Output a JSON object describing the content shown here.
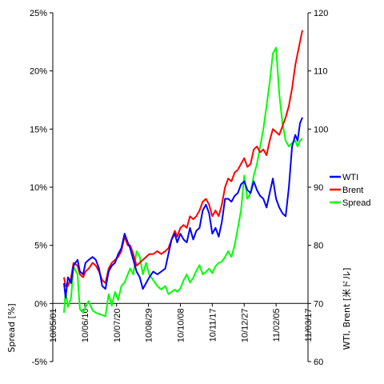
{
  "chart_data": {
    "type": "line",
    "title": "",
    "left_axis": {
      "label": "Spread [%]",
      "range": [
        -5,
        25
      ],
      "ticks": [
        "-5%",
        "0%",
        "5%",
        "10%",
        "15%",
        "20%",
        "25%"
      ],
      "tick_values": [
        -5,
        0,
        5,
        10,
        15,
        20,
        25
      ]
    },
    "right_axis": {
      "label": "WTI, Brent [米ドル]",
      "range": [
        60,
        120
      ],
      "ticks": [
        "60",
        "70",
        "80",
        "90",
        "100",
        "110",
        "120"
      ],
      "tick_values": [
        60,
        70,
        80,
        90,
        100,
        110,
        120
      ]
    },
    "x_axis": {
      "start": "2010-05-01",
      "end": "2011-03-17",
      "tick_labels": [
        "10/05/01",
        "10/06/10",
        "10/07/20",
        "10/08/29",
        "10/10/08",
        "10/11/17",
        "10/12/27",
        "11/02/05",
        "11/03/17"
      ],
      "tick_dates": [
        "2010-05-01",
        "2010-06-10",
        "2010-07-20",
        "2010-08-29",
        "2010-10-08",
        "2010-11-17",
        "2010-12-27",
        "2011-02-05",
        "2011-03-17"
      ]
    },
    "grid": false,
    "legend": {
      "position": "right",
      "items": [
        "WTI",
        "Brent",
        "Spread"
      ]
    },
    "colors": {
      "WTI": "#0000ff",
      "Brent": "#ff0000",
      "Spread": "#00ff00"
    },
    "series": [
      {
        "name": "WTI",
        "axis": "right",
        "x": [
          "2010-05-15",
          "2010-05-17",
          "2010-05-20",
          "2010-05-24",
          "2010-05-27",
          "2010-06-01",
          "2010-06-04",
          "2010-06-08",
          "2010-06-11",
          "2010-06-15",
          "2010-06-20",
          "2010-06-24",
          "2010-06-28",
          "2010-07-02",
          "2010-07-06",
          "2010-07-10",
          "2010-07-14",
          "2010-07-18",
          "2010-07-22",
          "2010-07-26",
          "2010-07-30",
          "2010-08-03",
          "2010-08-06",
          "2010-08-10",
          "2010-08-14",
          "2010-08-18",
          "2010-08-22",
          "2010-08-26",
          "2010-08-30",
          "2010-09-04",
          "2010-09-09",
          "2010-09-14",
          "2010-09-19",
          "2010-09-23",
          "2010-09-27",
          "2010-10-01",
          "2010-10-04",
          "2010-10-08",
          "2010-10-12",
          "2010-10-16",
          "2010-10-20",
          "2010-10-24",
          "2010-10-28",
          "2010-11-01",
          "2010-11-05",
          "2010-11-09",
          "2010-11-13",
          "2010-11-17",
          "2010-11-21",
          "2010-11-25",
          "2010-11-29",
          "2010-12-03",
          "2010-12-07",
          "2010-12-11",
          "2010-12-15",
          "2010-12-19",
          "2010-12-23",
          "2010-12-27",
          "2010-12-31",
          "2011-01-04",
          "2011-01-08",
          "2011-01-12",
          "2011-01-16",
          "2011-01-20",
          "2011-01-24",
          "2011-01-28",
          "2011-02-01",
          "2011-02-05",
          "2011-02-09",
          "2011-02-13",
          "2011-02-17",
          "2011-02-21",
          "2011-02-25",
          "2011-03-01",
          "2011-03-04",
          "2011-03-07",
          "2011-03-10"
        ],
        "values": [
          73.5,
          71.0,
          74.5,
          73.5,
          76.5,
          77.5,
          75.5,
          75.0,
          77.0,
          77.5,
          78.0,
          77.5,
          76.0,
          73.0,
          72.5,
          75.5,
          76.5,
          77.0,
          78.5,
          79.5,
          82.0,
          80.5,
          79.5,
          77.5,
          75.5,
          74.5,
          72.5,
          73.5,
          74.5,
          75.5,
          75.0,
          75.5,
          76.0,
          78.5,
          81.0,
          82.0,
          80.5,
          82.0,
          81.0,
          80.5,
          83.0,
          81.0,
          82.5,
          83.0,
          86.0,
          87.0,
          85.5,
          82.0,
          83.0,
          81.5,
          84.0,
          88.0,
          88.0,
          87.5,
          88.5,
          89.0,
          90.5,
          91.0,
          89.5,
          89.0,
          91.0,
          89.5,
          88.5,
          88.0,
          86.5,
          89.0,
          91.5,
          88.0,
          86.5,
          85.5,
          85.0,
          90.0,
          97.0,
          99.0,
          98.0,
          101.0,
          102.0
        ]
      },
      {
        "name": "Brent",
        "axis": "right",
        "x": [
          "2010-05-15",
          "2010-05-17",
          "2010-05-20",
          "2010-05-24",
          "2010-05-27",
          "2010-06-01",
          "2010-06-04",
          "2010-06-08",
          "2010-06-11",
          "2010-06-15",
          "2010-06-20",
          "2010-06-24",
          "2010-06-28",
          "2010-07-02",
          "2010-07-06",
          "2010-07-10",
          "2010-07-14",
          "2010-07-18",
          "2010-07-22",
          "2010-07-26",
          "2010-07-30",
          "2010-08-03",
          "2010-08-06",
          "2010-08-10",
          "2010-08-14",
          "2010-08-18",
          "2010-08-22",
          "2010-08-26",
          "2010-08-30",
          "2010-09-04",
          "2010-09-09",
          "2010-09-14",
          "2010-09-19",
          "2010-09-23",
          "2010-09-27",
          "2010-10-01",
          "2010-10-04",
          "2010-10-08",
          "2010-10-12",
          "2010-10-16",
          "2010-10-20",
          "2010-10-24",
          "2010-10-28",
          "2010-11-01",
          "2010-11-05",
          "2010-11-09",
          "2010-11-13",
          "2010-11-17",
          "2010-11-21",
          "2010-11-25",
          "2010-11-29",
          "2010-12-03",
          "2010-12-07",
          "2010-12-11",
          "2010-12-15",
          "2010-12-19",
          "2010-12-23",
          "2010-12-27",
          "2010-12-31",
          "2011-01-04",
          "2011-01-08",
          "2011-01-12",
          "2011-01-16",
          "2011-01-20",
          "2011-01-24",
          "2011-01-28",
          "2011-02-01",
          "2011-02-05",
          "2011-02-09",
          "2011-02-13",
          "2011-02-17",
          "2011-02-21",
          "2011-02-25",
          "2011-03-01",
          "2011-03-04",
          "2011-03-07",
          "2011-03-10"
        ],
        "values": [
          74.5,
          73.0,
          73.0,
          74.5,
          77.0,
          76.5,
          75.0,
          74.5,
          75.5,
          76.0,
          77.0,
          76.5,
          75.5,
          74.0,
          73.5,
          76.0,
          77.0,
          77.5,
          78.0,
          79.0,
          81.5,
          80.0,
          80.0,
          78.5,
          76.5,
          77.0,
          77.5,
          78.0,
          78.5,
          78.5,
          79.0,
          78.5,
          79.0,
          79.5,
          81.0,
          82.5,
          81.5,
          83.0,
          83.5,
          83.0,
          85.0,
          84.5,
          85.0,
          86.0,
          87.5,
          88.0,
          87.0,
          85.0,
          86.0,
          85.0,
          87.0,
          90.0,
          91.5,
          91.0,
          92.5,
          93.0,
          94.0,
          95.0,
          93.5,
          94.0,
          96.5,
          97.0,
          96.0,
          96.5,
          95.5,
          98.0,
          100.0,
          99.5,
          99.0,
          100.5,
          102.0,
          104.0,
          107.0,
          111.0,
          113.0,
          115.0,
          117.0
        ]
      },
      {
        "name": "Spread",
        "axis": "left",
        "x": [
          "2010-05-15",
          "2010-05-17",
          "2010-05-20",
          "2010-05-24",
          "2010-05-27",
          "2010-06-01",
          "2010-06-04",
          "2010-06-08",
          "2010-06-11",
          "2010-06-15",
          "2010-06-20",
          "2010-06-24",
          "2010-06-28",
          "2010-07-02",
          "2010-07-06",
          "2010-07-10",
          "2010-07-14",
          "2010-07-18",
          "2010-07-22",
          "2010-07-26",
          "2010-07-30",
          "2010-08-03",
          "2010-08-06",
          "2010-08-10",
          "2010-08-14",
          "2010-08-18",
          "2010-08-22",
          "2010-08-26",
          "2010-08-30",
          "2010-09-04",
          "2010-09-09",
          "2010-09-14",
          "2010-09-19",
          "2010-09-23",
          "2010-09-27",
          "2010-10-01",
          "2010-10-04",
          "2010-10-08",
          "2010-10-12",
          "2010-10-16",
          "2010-10-20",
          "2010-10-24",
          "2010-10-28",
          "2010-11-01",
          "2010-11-05",
          "2010-11-09",
          "2010-11-13",
          "2010-11-17",
          "2010-11-21",
          "2010-11-25",
          "2010-11-29",
          "2010-12-03",
          "2010-12-07",
          "2010-12-11",
          "2010-12-15",
          "2010-12-19",
          "2010-12-23",
          "2010-12-27",
          "2010-12-31",
          "2011-01-04",
          "2011-01-08",
          "2011-01-12",
          "2011-01-16",
          "2011-01-20",
          "2011-01-24",
          "2011-01-28",
          "2011-02-01",
          "2011-02-05",
          "2011-02-09",
          "2011-02-13",
          "2011-02-17",
          "2011-02-21",
          "2011-02-25",
          "2011-03-01",
          "2011-03-04",
          "2011-03-07",
          "2011-03-10"
        ],
        "values": [
          -0.8,
          1.0,
          -0.3,
          0.5,
          3.2,
          2.5,
          -0.5,
          -0.8,
          -0.3,
          0.2,
          -0.6,
          -0.8,
          -0.9,
          -1.0,
          -1.1,
          0.8,
          -0.2,
          1.0,
          0.3,
          1.5,
          1.8,
          2.5,
          3.0,
          2.5,
          4.5,
          4.0,
          2.5,
          3.5,
          2.5,
          2.0,
          1.5,
          1.2,
          1.5,
          0.8,
          1.0,
          1.2,
          1.0,
          1.3,
          2.0,
          2.5,
          1.8,
          2.2,
          2.8,
          3.3,
          2.5,
          2.7,
          3.0,
          2.6,
          3.2,
          3.5,
          3.6,
          4.0,
          4.5,
          4.0,
          5.0,
          6.5,
          8.0,
          11.0,
          9.0,
          9.5,
          11.0,
          12.0,
          13.5,
          15.0,
          17.0,
          19.0,
          21.5,
          22.0,
          18.0,
          15.5,
          14.0,
          13.5,
          13.8,
          14.0,
          13.5,
          14.0,
          14.2
        ]
      }
    ]
  }
}
